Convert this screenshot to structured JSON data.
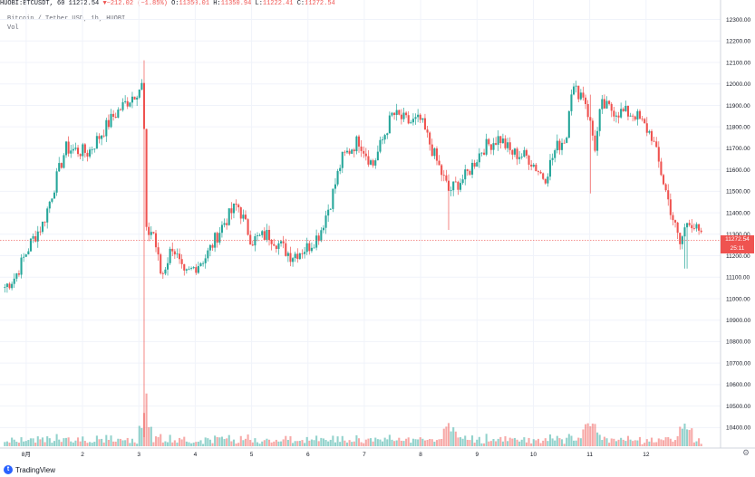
{
  "header": {
    "symbol": "HUOBI:BTCUSDT, 60",
    "last": "11272.54",
    "arrow": "▼",
    "change": "−212.02 (−1.85%)",
    "o_label": "O:",
    "o_value": "11350.01",
    "h_label": "H:",
    "h_value": "11350.94",
    "l_label": "L:",
    "l_value": "11222.41",
    "c_label": "C:",
    "c_value": "11272.54"
  },
  "legend": {
    "line1": "Bitcoin / Tether USD, 1h, HUOBI",
    "line2": "Vol"
  },
  "price_tag": {
    "value": "11272.54",
    "countdown": "25:11"
  },
  "branding": {
    "logo_text": "TradingView"
  },
  "colors": {
    "up": "#26a69a",
    "down": "#ef5350",
    "grid": "#f0f3fa",
    "axis": "#d1d4dc"
  },
  "chart_data": {
    "type": "candlestick",
    "yaxis": {
      "ticks": [
        10400,
        10500,
        10600,
        10700,
        10800,
        10900,
        11000,
        11100,
        11200,
        11300,
        11400,
        11500,
        11600,
        11700,
        11800,
        11900,
        12000,
        12100,
        12200,
        12300
      ],
      "tick_labels": [
        "10400.00",
        "10500.00",
        "10600.00",
        "10700.00",
        "10800.00",
        "10900.00",
        "11000.00",
        "11100.00",
        "11200.00",
        "11300.00",
        "11400.00",
        "11500.00",
        "11600.00",
        "11700.00",
        "11800.00",
        "11900.00",
        "12000.00",
        "12100.00",
        "12200.00",
        "12300.00"
      ],
      "range": [
        10355,
        12315
      ]
    },
    "xaxis": {
      "tick_labels": [
        "8月",
        "2",
        "3",
        "4",
        "5",
        "6",
        "7",
        "8",
        "9",
        "10",
        "11",
        "12"
      ],
      "range": [
        0,
        12.4
      ]
    },
    "current_price": 11272.54,
    "anchors": [
      {
        "x": 0.0,
        "p": 11050
      },
      {
        "x": 0.2,
        "p": 11100
      },
      {
        "x": 0.5,
        "p": 11270
      },
      {
        "x": 0.7,
        "p": 11350
      },
      {
        "x": 1.1,
        "p": 11700
      },
      {
        "x": 1.5,
        "p": 11680
      },
      {
        "x": 1.95,
        "p": 11850
      },
      {
        "x": 2.48,
        "p": 12000
      },
      {
        "x": 2.52,
        "p": 11300
      },
      {
        "x": 2.65,
        "p": 11320
      },
      {
        "x": 2.8,
        "p": 11100
      },
      {
        "x": 3.0,
        "p": 11250
      },
      {
        "x": 3.2,
        "p": 11100
      },
      {
        "x": 3.6,
        "p": 11200
      },
      {
        "x": 3.9,
        "p": 11350
      },
      {
        "x": 4.15,
        "p": 11440
      },
      {
        "x": 4.4,
        "p": 11270
      },
      {
        "x": 4.7,
        "p": 11300
      },
      {
        "x": 4.9,
        "p": 11250
      },
      {
        "x": 5.1,
        "p": 11200
      },
      {
        "x": 5.4,
        "p": 11240
      },
      {
        "x": 5.6,
        "p": 11300
      },
      {
        "x": 5.8,
        "p": 11450
      },
      {
        "x": 6.0,
        "p": 11650
      },
      {
        "x": 6.3,
        "p": 11740
      },
      {
        "x": 6.55,
        "p": 11620
      },
      {
        "x": 6.9,
        "p": 11860
      },
      {
        "x": 7.2,
        "p": 11820
      },
      {
        "x": 7.4,
        "p": 11830
      },
      {
        "x": 7.7,
        "p": 11630
      },
      {
        "x": 7.9,
        "p": 11500
      },
      {
        "x": 8.2,
        "p": 11570
      },
      {
        "x": 8.5,
        "p": 11700
      },
      {
        "x": 8.8,
        "p": 11750
      },
      {
        "x": 9.0,
        "p": 11680
      },
      {
        "x": 9.3,
        "p": 11660
      },
      {
        "x": 9.6,
        "p": 11560
      },
      {
        "x": 9.8,
        "p": 11700
      },
      {
        "x": 10.0,
        "p": 11760
      },
      {
        "x": 10.05,
        "p": 11980
      },
      {
        "x": 10.3,
        "p": 11950
      },
      {
        "x": 10.5,
        "p": 11700
      },
      {
        "x": 10.6,
        "p": 11900
      },
      {
        "x": 10.9,
        "p": 11870
      },
      {
        "x": 11.2,
        "p": 11860
      },
      {
        "x": 11.5,
        "p": 11760
      },
      {
        "x": 11.8,
        "p": 11450
      },
      {
        "x": 12.0,
        "p": 11250
      },
      {
        "x": 12.15,
        "p": 11380
      },
      {
        "x": 12.4,
        "p": 11272
      }
    ],
    "spikes": [
      {
        "x": 2.5,
        "high": 12110,
        "low": 10355
      },
      {
        "x": 7.9,
        "high": 11480,
        "low": 11320
      },
      {
        "x": 10.4,
        "high": 11950,
        "low": 11490
      },
      {
        "x": 12.1,
        "high": 11350,
        "low": 11140
      }
    ]
  }
}
